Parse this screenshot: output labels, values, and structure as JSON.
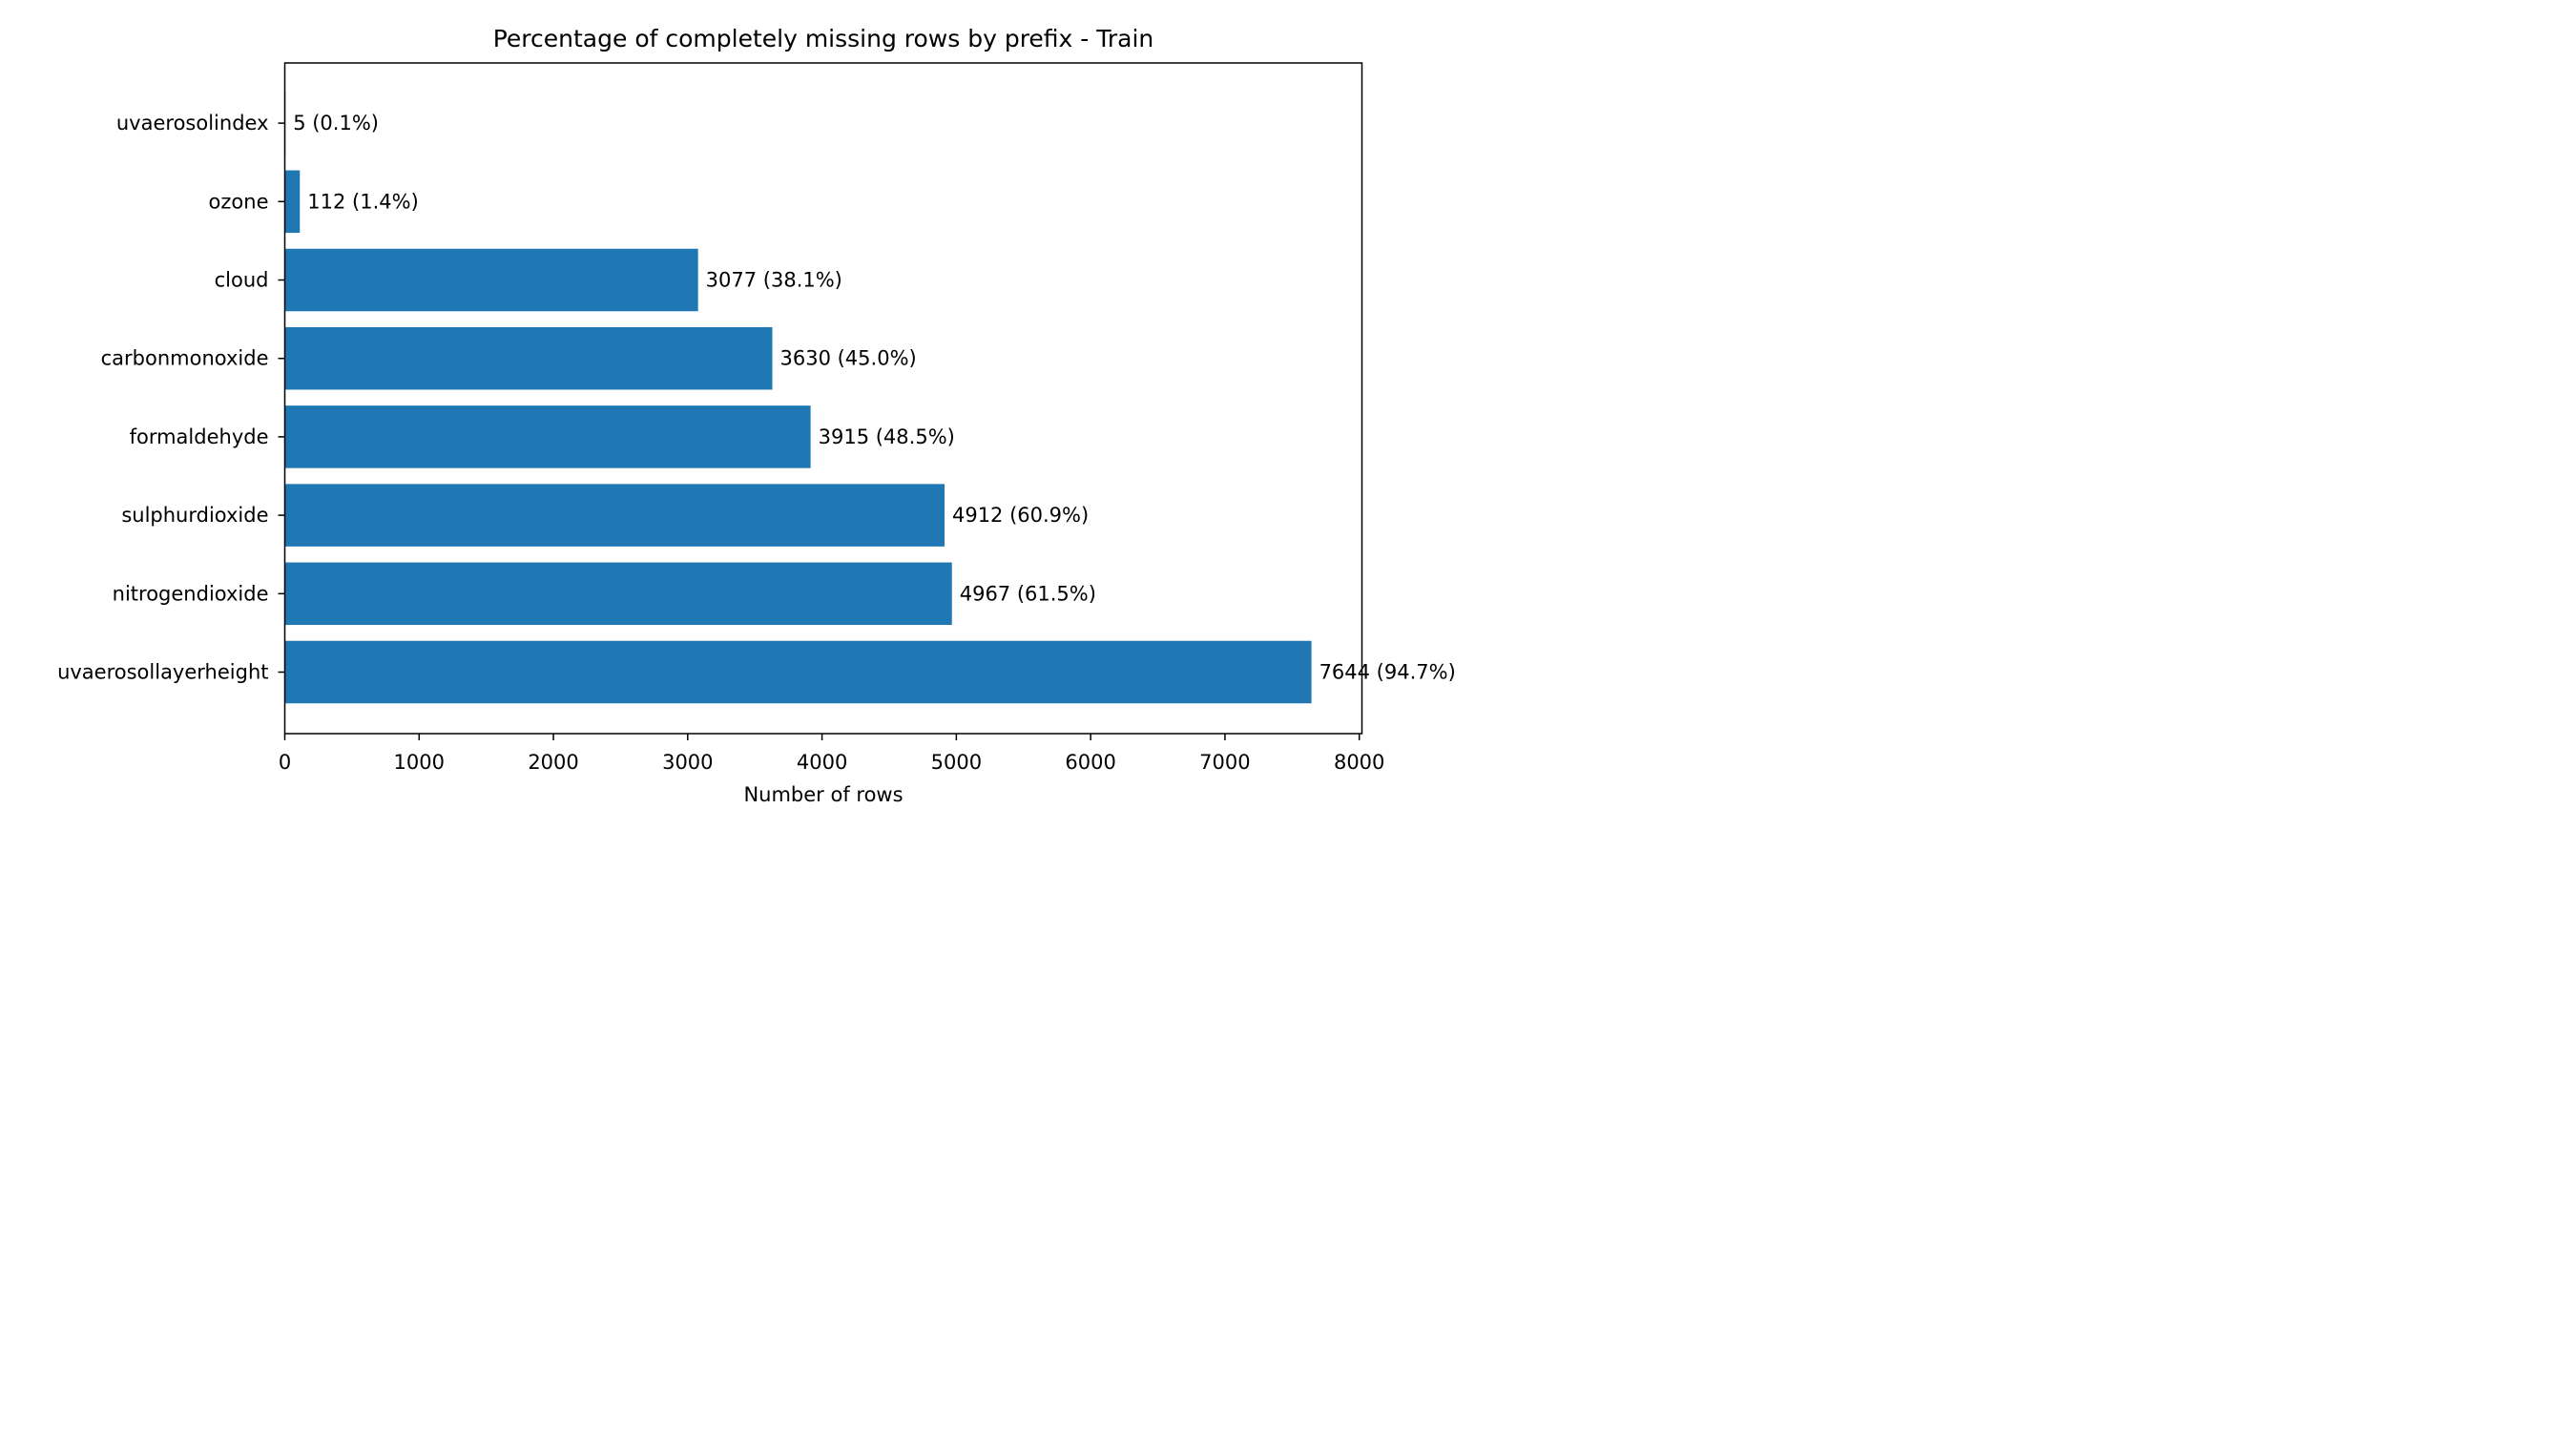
{
  "chart_data": {
    "type": "bar",
    "orientation": "horizontal",
    "title": "Percentage of completely missing rows by prefix - Train",
    "xlabel": "Number of rows",
    "ylabel": "",
    "xlim": [
      0,
      8020
    ],
    "xticks": [
      0,
      1000,
      2000,
      3000,
      4000,
      5000,
      6000,
      7000,
      8000
    ],
    "xtick_labels": [
      "0",
      "1000",
      "2000",
      "3000",
      "4000",
      "5000",
      "6000",
      "7000",
      "8000"
    ],
    "categories": [
      "uvaerosollayerheight",
      "nitrogendioxide",
      "sulphurdioxide",
      "formaldehyde",
      "carbonmonoxide",
      "cloud",
      "ozone",
      "uvaerosolindex"
    ],
    "values": [
      7644,
      4967,
      4912,
      3915,
      3630,
      3077,
      112,
      5
    ],
    "data_labels": [
      "7644 (94.7%)",
      "4967 (61.5%)",
      "4912 (60.9%)",
      "3915 (48.5%)",
      "3630 (45.0%)",
      "3077 (38.1%)",
      "112 (1.4%)",
      "5 (0.1%)"
    ],
    "bar_color": "#1f77b4",
    "grid": false,
    "legend": "none"
  }
}
